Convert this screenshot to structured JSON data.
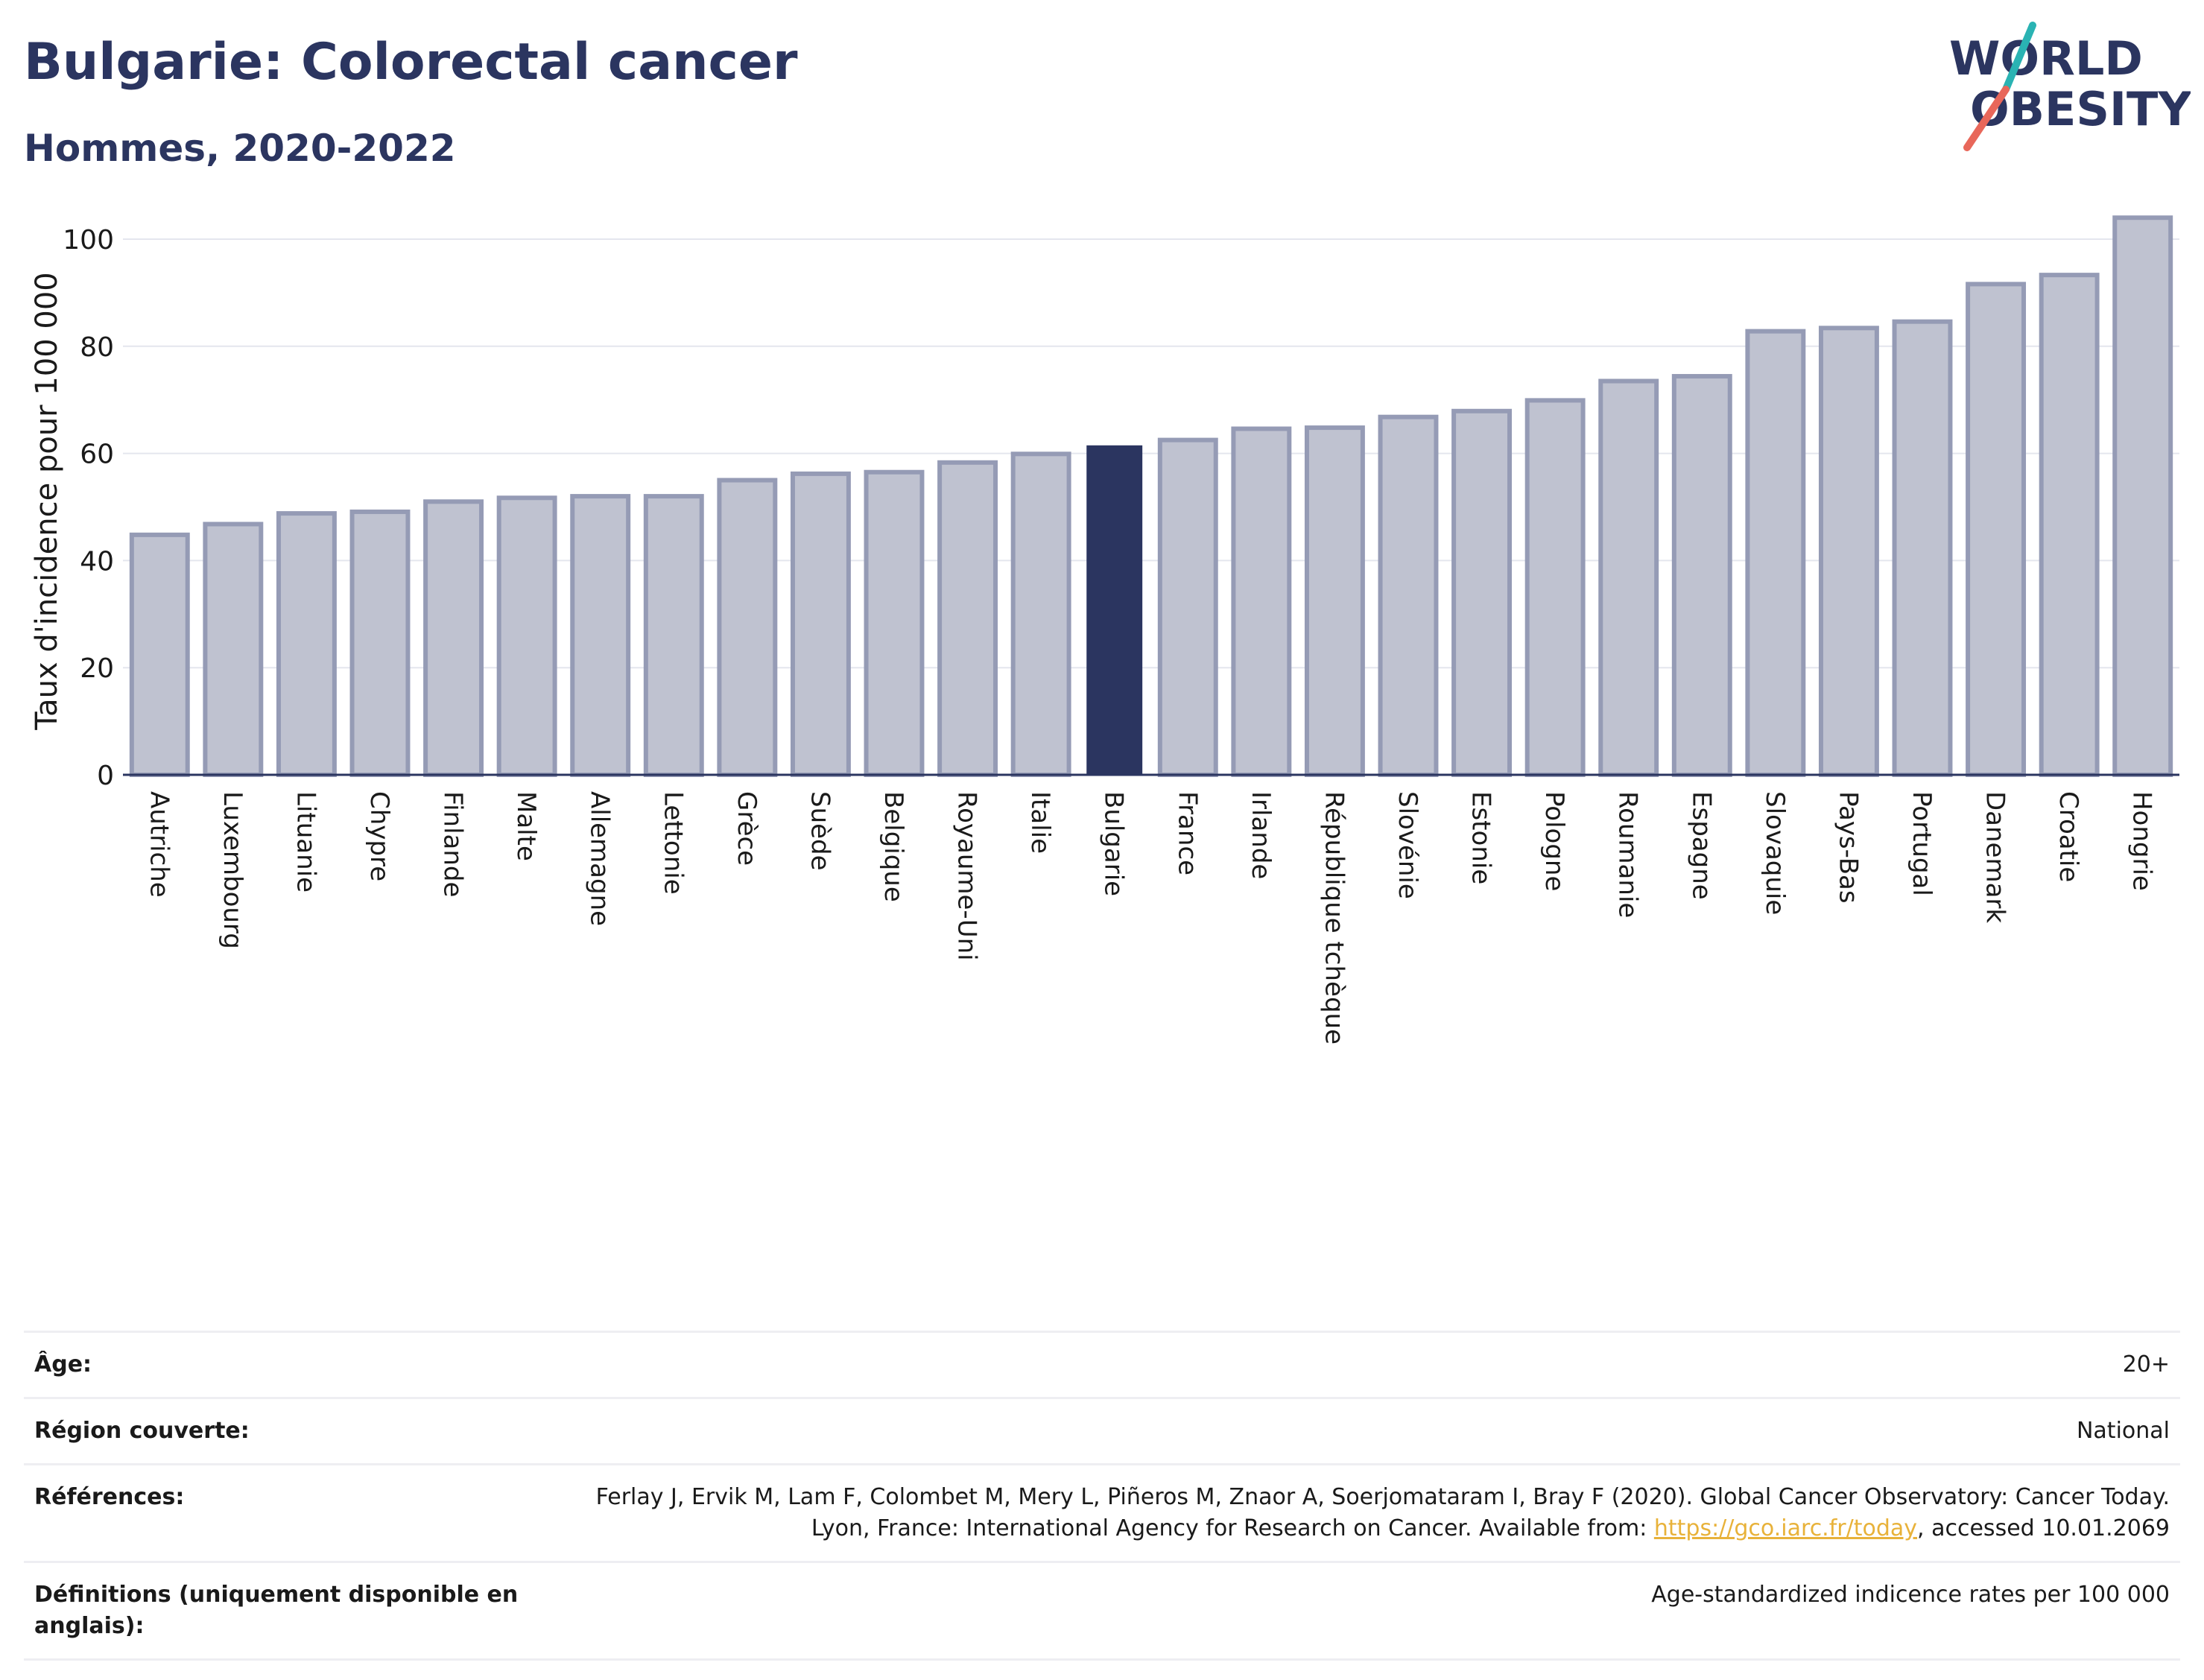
{
  "title": "Bulgarie: Colorectal cancer",
  "subtitle": "Hommes, 2020-2022",
  "logo": {
    "line1": "WORLD",
    "line2": "OBESITY",
    "colors": {
      "text": "#2b3560",
      "slash_top": "#2ab3b3",
      "slash_bottom": "#e8675a"
    }
  },
  "colors": {
    "bar": "#bfc2d0",
    "bar_stroke": "#959bb5",
    "highlight": "#2b3560",
    "grid": "#e4e6ee",
    "axis": "#2b3560",
    "text": "#1a1a1a"
  },
  "chart_data": {
    "type": "bar",
    "ylabel": "Taux d'incidence pour 100 000",
    "xlabel": "",
    "ylim": [
      0,
      105
    ],
    "yticks": [
      0,
      20,
      40,
      60,
      80,
      100
    ],
    "grid": true,
    "highlight": "Bulgarie",
    "categories": [
      "Autriche",
      "Luxembourg",
      "Lituanie",
      "Chypre",
      "Finlande",
      "Malte",
      "Allemagne",
      "Lettonie",
      "Grèce",
      "Suède",
      "Belgique",
      "Royaume-Uni",
      "Italie",
      "Bulgarie",
      "France",
      "Irlande",
      "République tchèque",
      "Slovénie",
      "Estonie",
      "Pologne",
      "Roumanie",
      "Espagne",
      "Slovaquie",
      "Pays-Bas",
      "Portugal",
      "Danemark",
      "Croatie",
      "Hongrie"
    ],
    "values": [
      44.8,
      46.8,
      48.8,
      49.1,
      51.0,
      51.7,
      52.0,
      52.0,
      55.0,
      56.2,
      56.5,
      58.3,
      59.9,
      61.5,
      62.5,
      64.6,
      64.8,
      66.8,
      67.9,
      69.9,
      73.5,
      74.4,
      82.8,
      83.4,
      84.6,
      91.6,
      93.3,
      104.0
    ]
  },
  "meta": {
    "age_label": "Âge:",
    "age_value": "20+",
    "region_label": "Région couverte:",
    "region_value": "National",
    "references_label": "Références:",
    "references_text_1": "Ferlay J, Ervik M, Lam F, Colombet M, Mery L, Piñeros M, Znaor A, Soerjomataram I, Bray F (2020). Global Cancer Observatory: Cancer Today. Lyon, France: International Agency for Research on Cancer. Available from: ",
    "references_link": "https://gco.iarc.fr/today",
    "references_text_2": ", accessed 10.01.2069",
    "definitions_label": "Définitions (uniquement disponible en anglais):",
    "definitions_value": "Age-standardized indicence rates per 100 000"
  }
}
